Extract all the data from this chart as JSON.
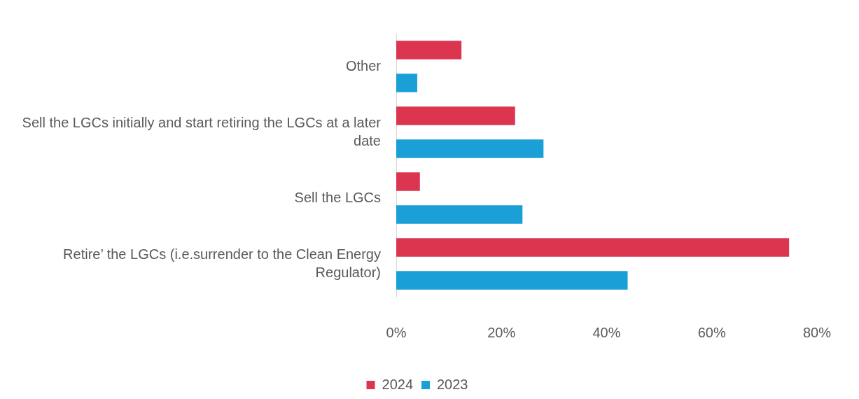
{
  "chart_data": {
    "type": "bar",
    "orientation": "horizontal",
    "categories": [
      "Other",
      "Sell the LGCs initially and start retiring the LGCs at a later date",
      "Sell the LGCs",
      "Retire’ the LGCs (i.e.surrender to the Clean Energy Regulator)"
    ],
    "series": [
      {
        "name": "2024",
        "color": "#dc3550",
        "values": [
          12.4,
          22.6,
          4.5,
          74.7
        ]
      },
      {
        "name": "2023",
        "color": "#1a9fd6",
        "values": [
          4,
          28,
          24,
          44
        ]
      }
    ],
    "xlim": [
      0,
      80
    ],
    "xticks": [
      {
        "value": 0,
        "label": "0%"
      },
      {
        "value": 20,
        "label": "20%"
      },
      {
        "value": 40,
        "label": "40%"
      },
      {
        "value": 60,
        "label": "60%"
      },
      {
        "value": 80,
        "label": "80%"
      }
    ],
    "grid": false,
    "legend": "bottom"
  }
}
